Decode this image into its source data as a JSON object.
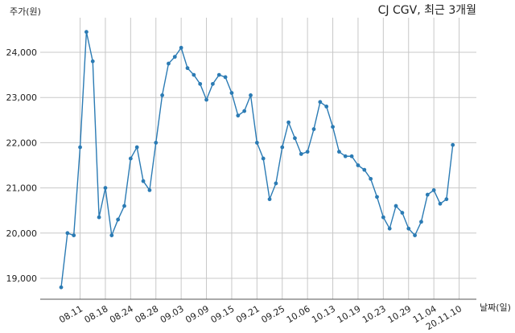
{
  "chart_data": {
    "type": "line",
    "title": "CJ CGV, 최근 3개월",
    "ylabel": "주가(원)",
    "xlabel": "날짜(일)",
    "ylim": [
      18500,
      24800
    ],
    "yticks": [
      19000,
      20000,
      21000,
      22000,
      23000,
      24000
    ],
    "ytick_labels": [
      "19,000",
      "20,000",
      "21,000",
      "22,000",
      "23,000",
      "24,000"
    ],
    "xtick_labels": [
      "08.11",
      "08.18",
      "08.24",
      "08.28",
      "09.03",
      "09.09",
      "09.15",
      "09.21",
      "09.25",
      "10.06",
      "10.13",
      "10.19",
      "10.23",
      "10.29",
      "11.04",
      "20.11.10"
    ],
    "xtick_index": [
      3,
      7,
      11,
      15,
      19,
      23,
      27,
      31,
      35,
      39,
      43,
      47,
      51,
      55,
      59,
      63
    ],
    "grid": true,
    "color": "#2b7bb4",
    "series": [
      {
        "values": [
          18800,
          20000,
          19950,
          21900,
          24450,
          23800,
          20350,
          21000,
          19950,
          20300,
          20600,
          21650,
          21900,
          21150,
          20950,
          22000,
          23050,
          23750,
          23900,
          24100,
          23650,
          23500,
          23300,
          22950,
          23300,
          23500,
          23450,
          23100,
          22600,
          22700,
          23050,
          22000,
          21650,
          20750,
          21100,
          21900,
          22450,
          22100,
          21750,
          21800,
          22300,
          22900,
          22800,
          22350,
          21800,
          21700,
          21700,
          21500,
          21400,
          21200,
          20800,
          20350,
          20100,
          20600,
          20450,
          20100,
          19950,
          20250,
          20850,
          20950,
          20650,
          20750,
          21950
        ]
      }
    ]
  }
}
